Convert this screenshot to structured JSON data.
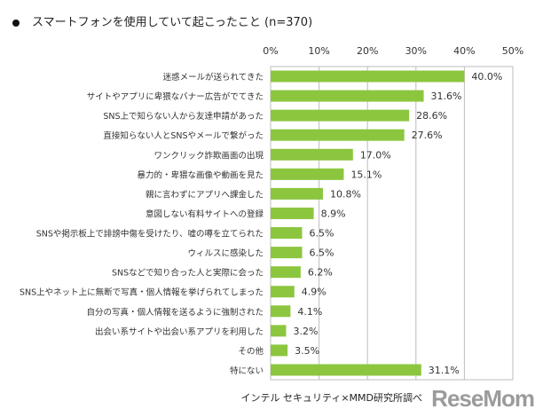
{
  "chart_data": {
    "type": "bar",
    "orientation": "horizontal",
    "title": "スマートフォンを使用していて起こったこと (n=370)",
    "categories": [
      "迷惑メールが送られてきた",
      "サイトやアプリに卑猥なバナー広告がでてきた",
      "SNS上で知らない人から友達申請があった",
      "直接知らない人とSNSやメールで繋がった",
      "ワンクリック詐欺画面の出現",
      "暴力的・卑猥な画像や動画を見た",
      "親に言わずにアプリへ課金した",
      "意図しない有料サイトへの登録",
      "SNSや掲示板上で誹謗中傷を受けたり、嘘の噂を立てられた",
      "ウィルスに感染した",
      "SNSなどで知り合った人と実際に会った",
      "SNS上やネット上に無断で写真・個人情報を挙げられてしまった",
      "自分の写真・個人情報を送るように強制された",
      "出会い系サイトや出会い系アプリを利用した",
      "その他",
      "特にない"
    ],
    "values": [
      40.0,
      31.6,
      28.6,
      27.6,
      17.0,
      15.1,
      10.8,
      8.9,
      6.5,
      6.5,
      6.2,
      4.9,
      4.1,
      3.2,
      3.5,
      31.1
    ],
    "value_labels": [
      "40.0%",
      "31.6%",
      "28.6%",
      "27.6%",
      "17.0%",
      "15.1%",
      "10.8%",
      "8.9%",
      "6.5%",
      "6.5%",
      "6.2%",
      "4.9%",
      "4.1%",
      "3.2%",
      "3.5%",
      "31.1%"
    ],
    "xlim": [
      0,
      50
    ],
    "ticks": [
      "0%",
      "10%",
      "20%",
      "30%",
      "40%",
      "50%"
    ],
    "tick_values": [
      0,
      10,
      20,
      30,
      40,
      50
    ],
    "axis_position": "top",
    "grid": true,
    "bar_color": "#8cc63f",
    "source": "インテル セキュリティ×MMD研究所調べ"
  },
  "watermark": "ReseMom"
}
